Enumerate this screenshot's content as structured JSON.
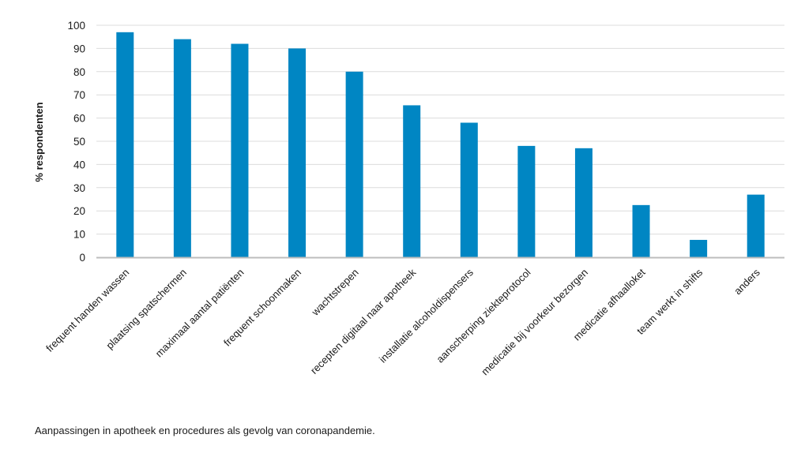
{
  "chart_data": {
    "type": "bar",
    "categories": [
      "frequent handen wassen",
      "plaatsing spatschermen",
      "maximaal aantal patiënten",
      "frequent schoonmaken",
      "wachtstrepen",
      "recepten digitaal naar apotheek",
      "installatie alcoholdispensers",
      "aanscherping ziekteprotocol",
      "medicatie bij voorkeur bezorgen",
      "medicatie afhaalloket",
      "team werkt in shifts",
      "anders"
    ],
    "values": [
      97,
      94,
      92,
      90,
      80,
      65.5,
      58,
      48,
      47,
      22.5,
      7.5,
      27
    ],
    "ylabel": "% respondenten",
    "xlabel": "",
    "ylim": [
      0,
      100
    ],
    "yticks": [
      0,
      10,
      20,
      30,
      40,
      50,
      60,
      70,
      80,
      90,
      100
    ],
    "grid": true,
    "bar_color": "#0086c3",
    "grid_color": "#dcdcdc",
    "axis_color": "#bdbdbd"
  },
  "caption": "Aanpassingen in apotheek en procedures als gevolg van coronapandemie."
}
